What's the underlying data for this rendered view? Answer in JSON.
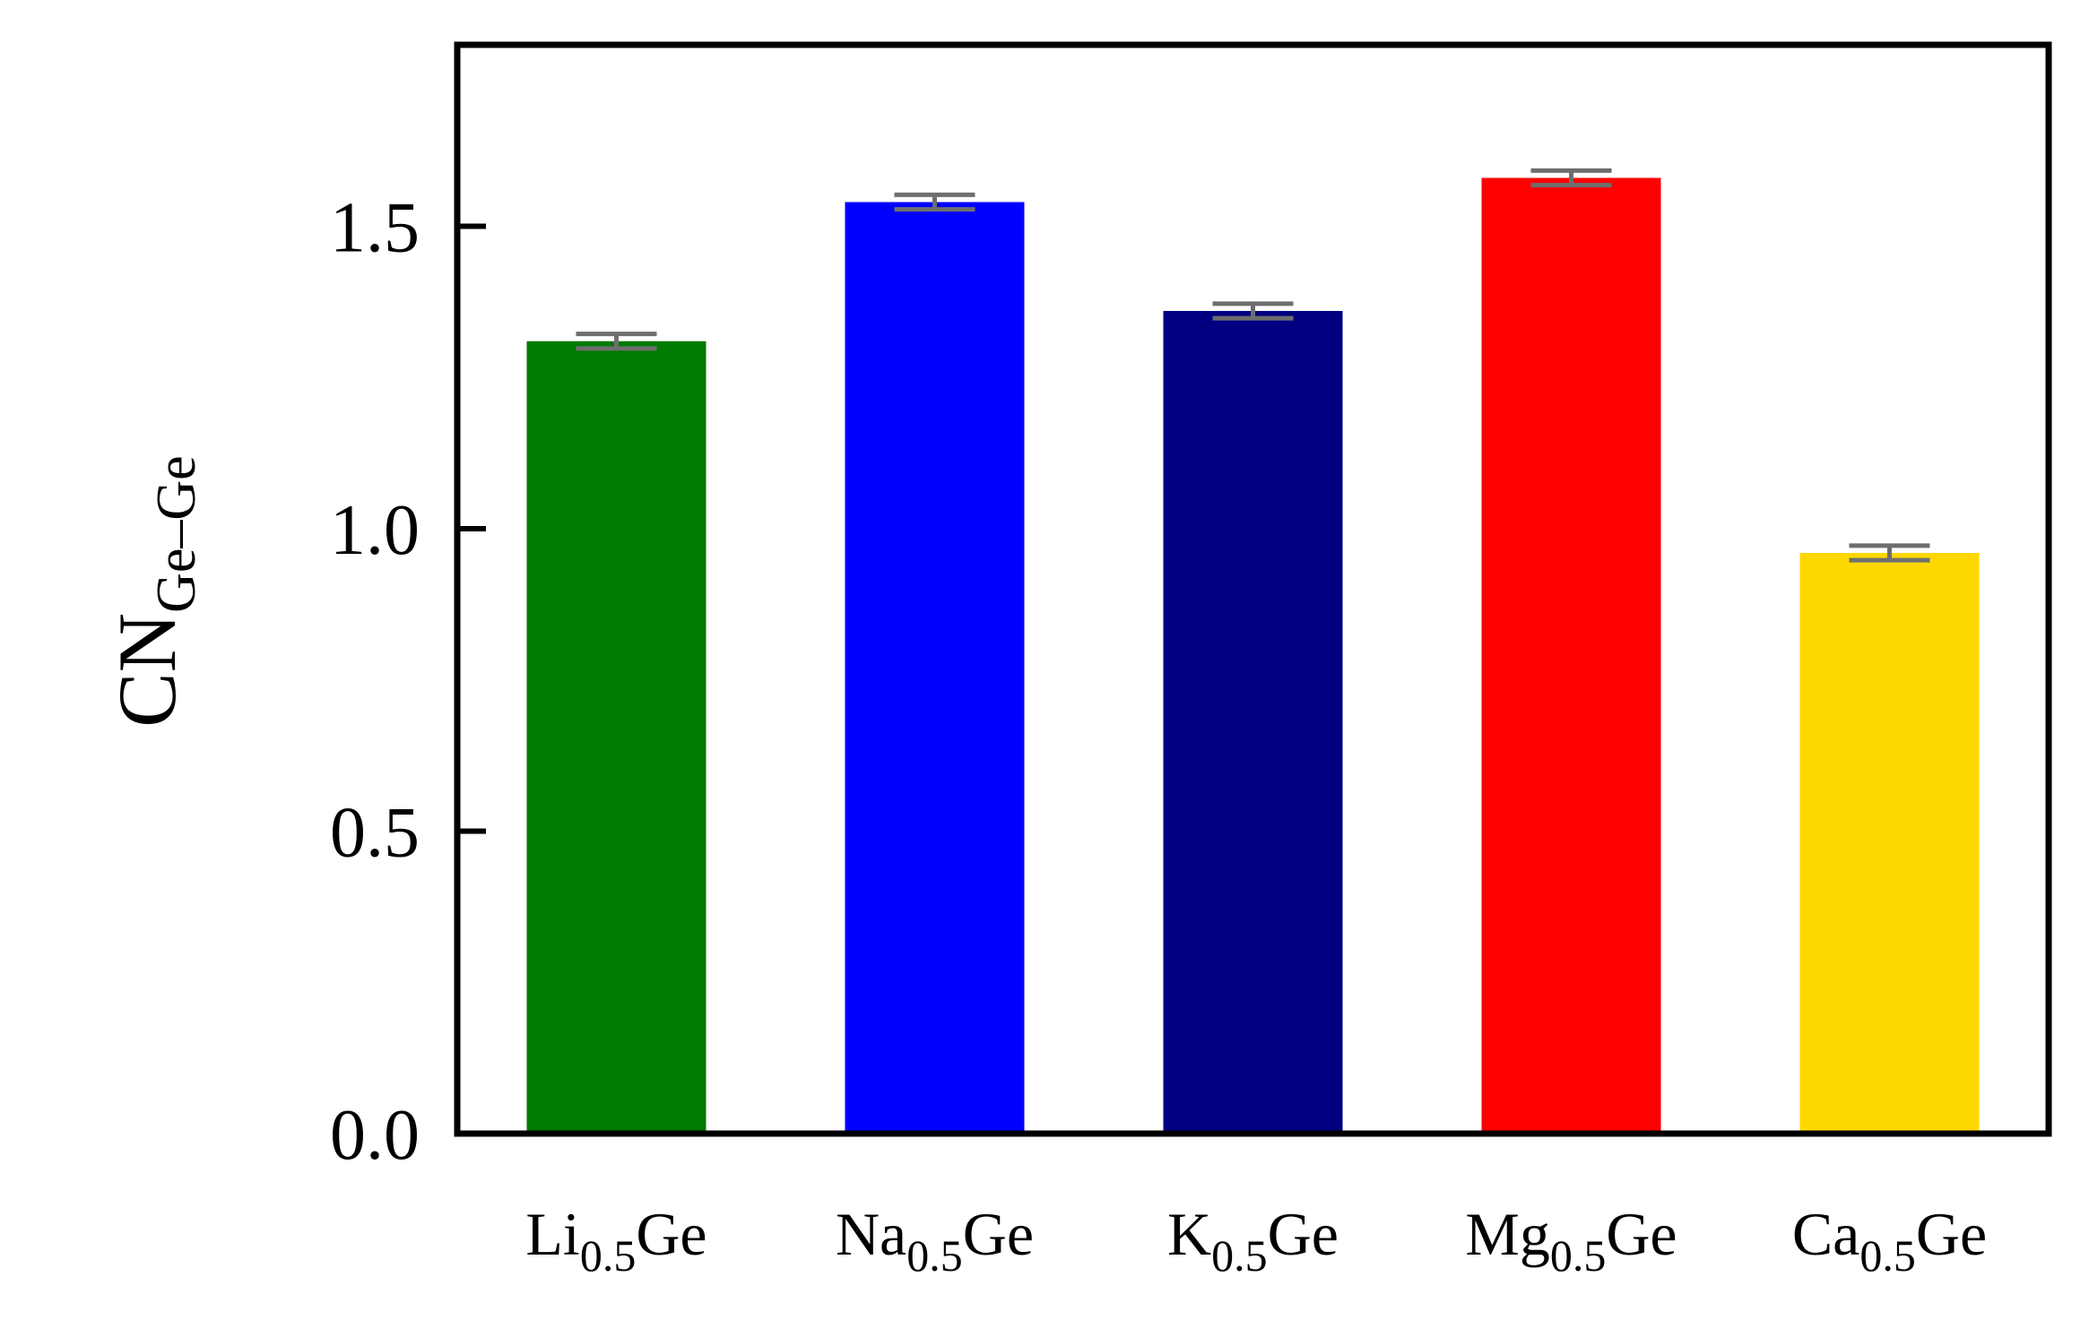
{
  "chart_data": {
    "type": "bar",
    "title": "",
    "xlabel": "",
    "ylabel": {
      "main": "CN",
      "sub": "Ge–Ge"
    },
    "ylim": [
      0,
      1.8
    ],
    "yticks": [
      "0.0",
      "0.5",
      "1.0",
      "1.5"
    ],
    "grid": false,
    "legend": "none",
    "categories": [
      {
        "base": "Li",
        "sub": "0.5",
        "suffix": "Ge"
      },
      {
        "base": "Na",
        "sub": "0.5",
        "suffix": "Ge"
      },
      {
        "base": "K",
        "sub": "0.5",
        "suffix": "Ge"
      },
      {
        "base": "Mg",
        "sub": "0.5",
        "suffix": "Ge"
      },
      {
        "base": "Ca",
        "sub": "0.5",
        "suffix": "Ge"
      }
    ],
    "values": [
      1.31,
      1.54,
      1.36,
      1.58,
      0.96
    ],
    "errors": [
      0.012,
      0.012,
      0.012,
      0.012,
      0.012
    ],
    "colors": [
      "#007a00",
      "#0000ff",
      "#000080",
      "#ff0000",
      "#ffd700"
    ],
    "errorbar_color": "#6e6e6e"
  }
}
